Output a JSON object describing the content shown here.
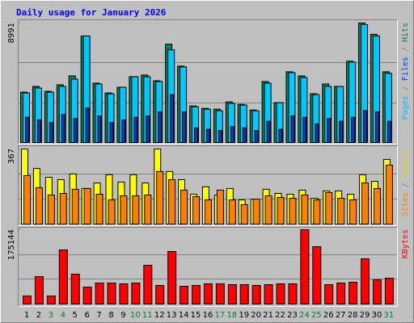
{
  "chart_data": [
    {
      "type": "bar",
      "title": "Daily usage for January 2026",
      "legend_separator": " / ",
      "ylim": [
        0,
        8991
      ],
      "yticks": [
        8991
      ],
      "series": [
        {
          "name": "Hits",
          "color": "#00805C",
          "label_color": "#00805C",
          "values": [
            3792,
            4220,
            3853,
            4343,
            5015,
            8012,
            4465,
            3731,
            4159,
            4954,
            5076,
            4648,
            7401,
            5749,
            2752,
            2569,
            2508,
            3058,
            2875,
            2447,
            4587,
            2997,
            5321,
            5015,
            3670,
            4404,
            4220,
            6116,
            8991,
            8135,
            5321
          ]
        },
        {
          "name": "Files",
          "color": "#00C8FF",
          "label_color": "#0040FF",
          "values": [
            3730,
            4100,
            3790,
            4220,
            4770,
            8012,
            4400,
            3670,
            4159,
            4954,
            4950,
            4590,
            6970,
            5690,
            2690,
            2510,
            2390,
            2940,
            2815,
            2385,
            4465,
            2997,
            5260,
            4890,
            3610,
            4220,
            4220,
            6055,
            8870,
            8010,
            5200
          ]
        },
        {
          "name": "Pages",
          "color": "#0040C0",
          "label_color": "#00C0FF",
          "values": [
            1900,
            1700,
            1500,
            2100,
            1800,
            2600,
            2000,
            1500,
            1700,
            1900,
            2000,
            2300,
            3600,
            2300,
            1100,
            1000,
            900,
            1200,
            1100,
            900,
            1600,
            1000,
            2000,
            1900,
            1400,
            1800,
            1600,
            1900,
            2400,
            2300,
            1600
          ]
        }
      ]
    },
    {
      "type": "bar",
      "ylim": [
        0,
        367
      ],
      "yticks": [
        367
      ],
      "series": [
        {
          "name": "Visits",
          "color": "#FFFF00",
          "label_color": "#E8D000",
          "values": [
            367,
            272,
            229,
            217,
            245,
            174,
            201,
            241,
            205,
            241,
            201,
            367,
            257,
            217,
            146,
            182,
            142,
            174,
            118,
            122,
            170,
            150,
            146,
            166,
            126,
            162,
            162,
            146,
            241,
            209,
            316
          ]
        },
        {
          "name": "Sites",
          "color": "#FF8000",
          "label_color": "#FF8000",
          "values": [
            237,
            178,
            142,
            150,
            170,
            174,
            146,
            118,
            138,
            138,
            142,
            257,
            217,
            166,
            134,
            118,
            166,
            118,
            95,
            122,
            138,
            130,
            126,
            142,
            118,
            154,
            126,
            118,
            201,
            174,
            288
          ]
        }
      ]
    },
    {
      "type": "bar",
      "ylim": [
        0,
        175144
      ],
      "yticks": [
        175144
      ],
      "categories": [
        "1",
        "2",
        "3",
        "4",
        "5",
        "6",
        "7",
        "8",
        "9",
        "10",
        "11",
        "12",
        "13",
        "14",
        "15",
        "16",
        "17",
        "18",
        "19",
        "20",
        "21",
        "22",
        "23",
        "24",
        "25",
        "26",
        "27",
        "28",
        "29",
        "30",
        "31"
      ],
      "category_colors": [
        "#000000",
        "#000000",
        "#008040",
        "#008040",
        "#000000",
        "#000000",
        "#000000",
        "#000000",
        "#000000",
        "#008040",
        "#008040",
        "#000000",
        "#000000",
        "#000000",
        "#000000",
        "#000000",
        "#008040",
        "#008040",
        "#000000",
        "#000000",
        "#000000",
        "#000000",
        "#000000",
        "#008040",
        "#008040",
        "#000000",
        "#000000",
        "#000000",
        "#000000",
        "#000000",
        "#008040"
      ],
      "series": [
        {
          "name": "KBytes",
          "color": "#FF0000",
          "label_color": "#FF0000",
          "values": [
            19040,
            64740,
            19040,
            127570,
            70450,
            39980,
            49500,
            49500,
            47600,
            49500,
            91390,
            43790,
            123760,
            41890,
            43790,
            47600,
            47600,
            45700,
            45700,
            43790,
            45700,
            47600,
            47600,
            175144,
            135180,
            45700,
            49500,
            51410,
            106620,
            57120,
            60930
          ]
        }
      ]
    }
  ]
}
